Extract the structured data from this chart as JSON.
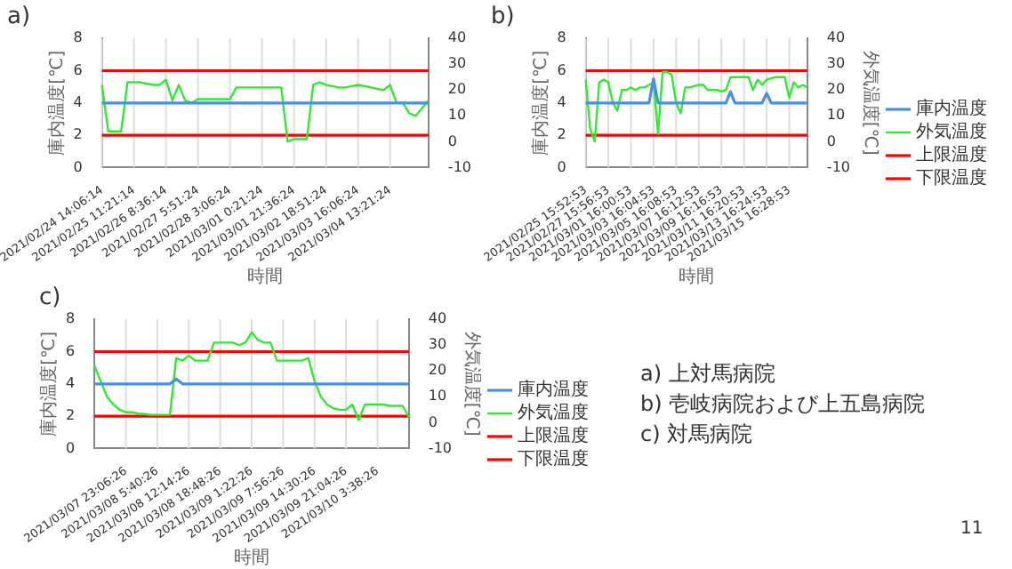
{
  "chart_data": [
    {
      "type": "line",
      "title": "a)",
      "xlabel": "時間",
      "ylabel": "庫内温度[℃]",
      "grid": "x",
      "marker": "none",
      "ylim": [
        0,
        8
      ],
      "yticks": [
        0,
        2,
        4,
        6,
        8
      ],
      "y2lim": [
        -10,
        40
      ],
      "y2ticks": [
        -10,
        0,
        10,
        20,
        30,
        40
      ],
      "categories": [
        "2021/02/24 14:06:14",
        null,
        null,
        null,
        null,
        "2021/02/25 11:21:14",
        null,
        null,
        null,
        null,
        "2021/02/26 8:36:14",
        null,
        null,
        null,
        null,
        "2021/02/27 5:51:24",
        null,
        null,
        null,
        null,
        "2021/02/28 3:06:24",
        null,
        null,
        null,
        null,
        "2021/03/01 0:21:24",
        null,
        null,
        null,
        null,
        "2021/03/01 21:36:24",
        null,
        null,
        null,
        null,
        "2021/03/02 18:51:24",
        null,
        null,
        null,
        null,
        "2021/03/03 16:06:24",
        null,
        null,
        null,
        null,
        "2021/03/04 13:21:24",
        null,
        null,
        null,
        null,
        null,
        null
      ],
      "series": [
        {
          "color": "#4a90e2",
          "values": [
            4,
            4,
            4,
            4,
            4,
            4,
            4,
            4,
            4,
            4,
            4,
            4,
            4,
            4,
            4,
            4,
            4,
            4,
            4,
            4,
            4,
            4,
            4,
            4,
            4,
            4,
            4,
            4,
            4,
            4,
            4,
            4,
            4,
            4,
            4,
            4,
            4,
            4,
            4,
            4,
            4,
            4,
            4,
            4,
            4,
            4,
            4,
            4,
            4,
            4,
            4,
            4
          ]
        },
        {
          "color": "#33e833",
          "axis": "y2",
          "values": [
            22,
            4,
            4,
            4,
            23,
            23,
            23,
            22.5,
            22,
            22,
            24,
            16,
            22,
            16,
            15,
            16.5,
            16.5,
            16.5,
            16.5,
            16.5,
            16.5,
            21,
            21,
            21,
            21,
            21,
            21,
            21,
            21,
            0,
            1,
            1,
            1,
            22,
            23,
            22,
            21.5,
            21,
            21,
            21.5,
            22,
            21.5,
            21,
            20.5,
            20,
            22,
            15,
            15,
            11,
            10,
            13,
            16
          ]
        },
        {
          "color": "#ff0000",
          "values": [
            6,
            6,
            6,
            6,
            6,
            6,
            6,
            6,
            6,
            6,
            6,
            6,
            6,
            6,
            6,
            6,
            6,
            6,
            6,
            6,
            6,
            6,
            6,
            6,
            6,
            6,
            6,
            6,
            6,
            6,
            6,
            6,
            6,
            6,
            6,
            6,
            6,
            6,
            6,
            6,
            6,
            6,
            6,
            6,
            6,
            6,
            6,
            6,
            6,
            6,
            6,
            6
          ]
        },
        {
          "color": "#ff0000",
          "values": [
            2,
            2,
            2,
            2,
            2,
            2,
            2,
            2,
            2,
            2,
            2,
            2,
            2,
            2,
            2,
            2,
            2,
            2,
            2,
            2,
            2,
            2,
            2,
            2,
            2,
            2,
            2,
            2,
            2,
            2,
            2,
            2,
            2,
            2,
            2,
            2,
            2,
            2,
            2,
            2,
            2,
            2,
            2,
            2,
            2,
            2,
            2,
            2,
            2,
            2,
            2,
            2
          ]
        }
      ]
    },
    {
      "type": "line",
      "title": "b)",
      "xlabel": "時間",
      "ylabel": "庫内温度[℃]",
      "y2label": "外気温度[℃]",
      "grid": "x",
      "marker": "none",
      "legend": "right",
      "ylim": [
        0,
        8
      ],
      "yticks": [
        0,
        2,
        4,
        6,
        8
      ],
      "y2lim": [
        -10,
        40
      ],
      "y2ticks": [
        -10,
        0,
        10,
        20,
        30,
        40
      ],
      "categories": [
        "2021/02/25 15:52:53",
        null,
        null,
        null,
        null,
        "2021/02/27 15:56:53",
        null,
        null,
        null,
        null,
        "2021/03/01 16:00:53",
        null,
        null,
        null,
        null,
        "2021/03/03 16:04:53",
        null,
        null,
        null,
        null,
        "2021/03/05 16:08:53",
        null,
        null,
        null,
        null,
        "2021/03/07 16:12:53",
        null,
        null,
        null,
        null,
        "2021/03/09 16:16:53",
        null,
        null,
        null,
        null,
        "2021/03/11 16:20:53",
        null,
        null,
        null,
        null,
        "2021/03/13 16:24:53",
        null,
        null,
        null,
        null,
        "2021/03/15 16:28:53",
        null,
        null,
        null,
        null
      ],
      "series": [
        {
          "name": "庫内温度",
          "color": "#4a90e2",
          "values": [
            4,
            4,
            4,
            4,
            4,
            4,
            4,
            4,
            4,
            4,
            4,
            4,
            4,
            4,
            4,
            5.5,
            4,
            4,
            4,
            4,
            4,
            4,
            4,
            4,
            4,
            4,
            4,
            4,
            4,
            4,
            4,
            4,
            4.7,
            4,
            4,
            4,
            4,
            4,
            4,
            4,
            4.6,
            4,
            4,
            4,
            4,
            4,
            4,
            4,
            4,
            4
          ]
        },
        {
          "name": "外気温度",
          "color": "#33e833",
          "axis": "y2",
          "values": [
            24,
            5,
            0,
            23,
            24,
            23,
            15,
            12,
            20,
            20,
            21,
            20,
            21,
            21,
            22,
            23,
            3,
            27,
            27,
            26,
            15,
            11,
            21,
            21,
            21.5,
            22,
            22,
            20,
            20,
            20,
            19.5,
            20,
            25,
            25,
            25,
            25,
            25,
            20,
            24,
            22,
            24,
            24.5,
            25,
            25,
            25,
            17,
            23,
            21,
            22,
            21
          ]
        },
        {
          "name": "上限温度",
          "color": "#ff0000",
          "values": [
            6,
            6,
            6,
            6,
            6,
            6,
            6,
            6,
            6,
            6,
            6,
            6,
            6,
            6,
            6,
            6,
            6,
            6,
            6,
            6,
            6,
            6,
            6,
            6,
            6,
            6,
            6,
            6,
            6,
            6,
            6,
            6,
            6,
            6,
            6,
            6,
            6,
            6,
            6,
            6,
            6,
            6,
            6,
            6,
            6,
            6,
            6,
            6,
            6,
            6
          ]
        },
        {
          "name": "下限温度",
          "color": "#ff0000",
          "values": [
            2,
            2,
            2,
            2,
            2,
            2,
            2,
            2,
            2,
            2,
            2,
            2,
            2,
            2,
            2,
            2,
            2,
            2,
            2,
            2,
            2,
            2,
            2,
            2,
            2,
            2,
            2,
            2,
            2,
            2,
            2,
            2,
            2,
            2,
            2,
            2,
            2,
            2,
            2,
            2,
            2,
            2,
            2,
            2,
            2,
            2,
            2,
            2,
            2,
            2
          ]
        }
      ]
    },
    {
      "type": "line",
      "title": "c)",
      "xlabel": "時間",
      "ylabel": "庫内温度[℃]",
      "y2label": "外気温度[℃]",
      "grid": "x",
      "marker": "none",
      "legend": "right",
      "ylim": [
        0,
        8
      ],
      "yticks": [
        0,
        2,
        4,
        6,
        8
      ],
      "y2lim": [
        -10,
        40
      ],
      "y2ticks": [
        -10,
        0,
        10,
        20,
        30,
        40
      ],
      "categories": [
        null,
        null,
        null,
        null,
        null,
        "2021/03/07 23:06:26",
        null,
        null,
        null,
        null,
        "2021/03/08 5:40:26",
        null,
        null,
        null,
        null,
        "2021/03/08 12:14:26",
        null,
        null,
        null,
        null,
        "2021/03/08 18:48:26",
        null,
        null,
        null,
        null,
        "2021/03/09 1:22:26",
        null,
        null,
        null,
        null,
        "2021/03/09 7:56:26",
        null,
        null,
        null,
        null,
        "2021/03/09 14:30:26",
        null,
        null,
        null,
        null,
        "2021/03/09 21:04:26",
        null,
        null,
        null,
        null,
        "2021/03/10 3:38:26",
        null,
        null,
        null,
        null,
        null
      ],
      "series": [
        {
          "name": "庫内温度",
          "color": "#4a90e2",
          "values": [
            4,
            4,
            4,
            4,
            4,
            4,
            4,
            4,
            4,
            4,
            4,
            4,
            4,
            4.3,
            4,
            4,
            4,
            4,
            4,
            4,
            4,
            4,
            4,
            4,
            4,
            4,
            4,
            4,
            4,
            4,
            4,
            4,
            4,
            4,
            4,
            4,
            4,
            4,
            4,
            4,
            4,
            4,
            4,
            4,
            4,
            4,
            4,
            4,
            4,
            4,
            4
          ]
        },
        {
          "name": "外気温度",
          "color": "#33e833",
          "axis": "y2",
          "values": [
            22,
            16,
            10,
            7,
            5,
            4,
            4,
            3.5,
            3.3,
            3,
            3,
            3,
            3,
            25,
            24,
            26,
            24,
            24,
            24,
            31,
            31,
            31,
            31,
            30,
            31,
            35,
            32,
            31,
            31,
            24,
            24,
            24,
            24,
            24,
            25,
            16,
            10,
            7,
            5.5,
            5,
            5,
            7,
            1,
            7,
            7,
            7,
            7,
            6.5,
            6.5,
            6.5,
            2
          ]
        },
        {
          "name": "上限温度",
          "color": "#ff0000",
          "values": [
            6,
            6,
            6,
            6,
            6,
            6,
            6,
            6,
            6,
            6,
            6,
            6,
            6,
            6,
            6,
            6,
            6,
            6,
            6,
            6,
            6,
            6,
            6,
            6,
            6,
            6,
            6,
            6,
            6,
            6,
            6,
            6,
            6,
            6,
            6,
            6,
            6,
            6,
            6,
            6,
            6,
            6,
            6,
            6,
            6,
            6,
            6,
            6,
            6,
            6,
            6
          ]
        },
        {
          "name": "下限温度",
          "color": "#ff0000",
          "values": [
            2,
            2,
            2,
            2,
            2,
            2,
            2,
            2,
            2,
            2,
            2,
            2,
            2,
            2,
            2,
            2,
            2,
            2,
            2,
            2,
            2,
            2,
            2,
            2,
            2,
            2,
            2,
            2,
            2,
            2,
            2,
            2,
            2,
            2,
            2,
            2,
            2,
            2,
            2,
            2,
            2,
            2,
            2,
            2,
            2,
            2,
            2,
            2,
            2,
            2,
            2
          ]
        }
      ]
    },
    {
      "type": "other",
      "annotations": [
        "a) 上対馬病院",
        "b) 壱岐病院および上五島病院",
        "c) 対馬病院",
        "11"
      ]
    }
  ]
}
